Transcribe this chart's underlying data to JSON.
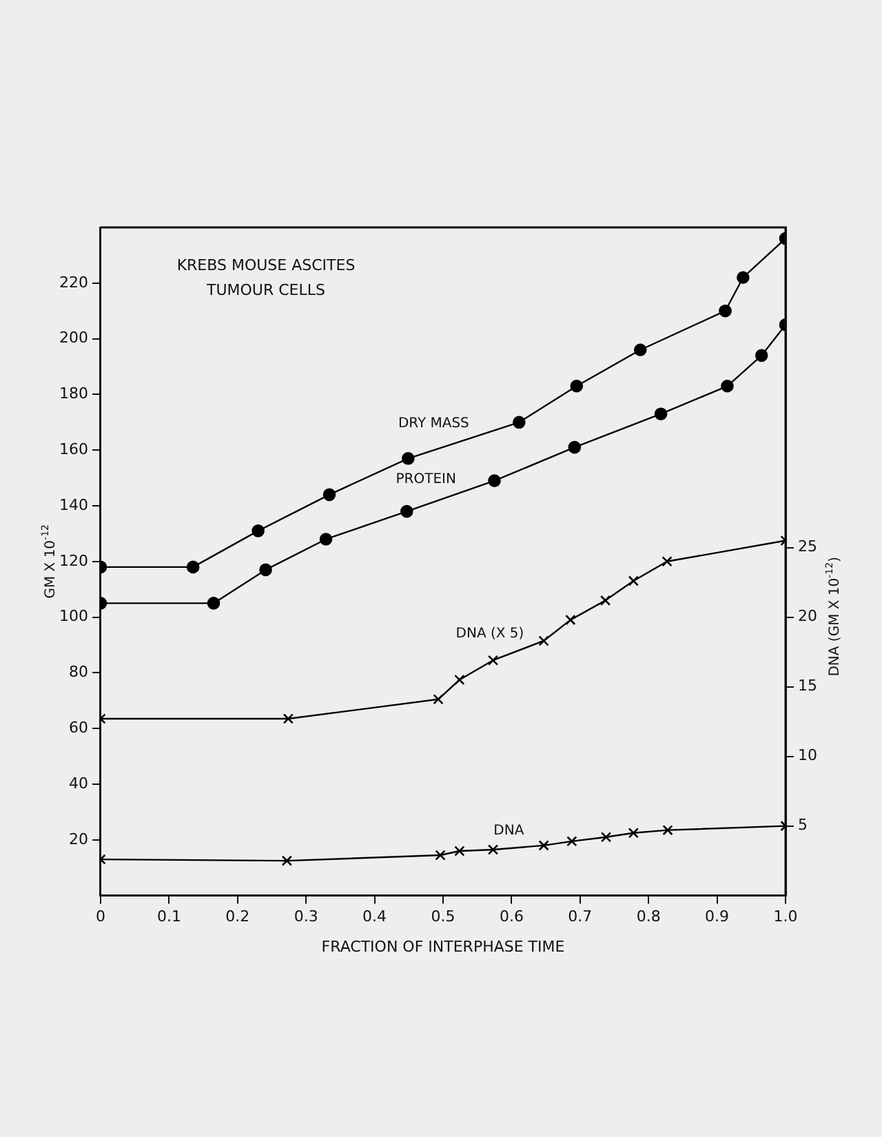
{
  "chart_data": {
    "type": "line",
    "title": "KREBS MOUSE ASCITES\nTUMOUR CELLS",
    "xlabel": "FRACTION OF INTERPHASE TIME",
    "ylabel": "GM X 10$^{-12}$",
    "y2label": "DNA (GM X 10$^{-12}$)",
    "xlim": [
      0,
      1
    ],
    "xticks": [
      0,
      0.1,
      0.2,
      0.3,
      0.4,
      0.5,
      0.6,
      0.7,
      0.8,
      0.9,
      {
        "value": 1,
        "label": "1.0"
      }
    ],
    "ylim": [
      0,
      240
    ],
    "yticks": [
      20,
      40,
      60,
      80,
      100,
      120,
      140,
      160,
      180,
      200,
      220
    ],
    "y2lim": [
      0,
      48
    ],
    "y2ticks": [
      5,
      10,
      15,
      20,
      25
    ],
    "grid": false,
    "legend": false,
    "series": [
      {
        "name": "DRY MASS",
        "color": "#000000",
        "marker": "circle",
        "x": [
          0,
          0.135,
          0.23,
          0.334,
          0.449,
          0.611,
          0.695,
          0.788,
          0.912,
          0.938,
          1.0
        ],
        "values": [
          118,
          118,
          131,
          144,
          157,
          170,
          183,
          196,
          210,
          222,
          236
        ]
      },
      {
        "name": "PROTEIN",
        "color": "#000000",
        "marker": "circle",
        "x": [
          0,
          0.165,
          0.241,
          0.329,
          0.447,
          0.575,
          0.692,
          0.818,
          0.915,
          0.965,
          1.0
        ],
        "values": [
          105,
          105,
          117,
          128,
          138,
          149,
          161,
          173,
          183,
          194,
          205
        ]
      },
      {
        "name": "DNA (X 5)",
        "color": "#000000",
        "marker": "cross",
        "axis": "y2",
        "x": [
          0,
          0.274,
          0.493,
          0.524,
          0.573,
          0.647,
          0.686,
          0.737,
          0.778,
          0.827,
          1.0
        ],
        "values": [
          12.7,
          12.7,
          14.1,
          15.5,
          16.9,
          18.3,
          19.8,
          21.2,
          22.6,
          24.0,
          25.5
        ]
      },
      {
        "name": "DNA",
        "color": "#000000",
        "marker": "cross",
        "axis": "y2",
        "x": [
          0,
          0.272,
          0.496,
          0.524,
          0.573,
          0.647,
          0.688,
          0.738,
          0.778,
          0.828,
          1.0
        ],
        "values": [
          2.6,
          2.5,
          2.9,
          3.2,
          3.3,
          3.6,
          3.9,
          4.2,
          4.5,
          4.7,
          5.0
        ]
      }
    ]
  }
}
